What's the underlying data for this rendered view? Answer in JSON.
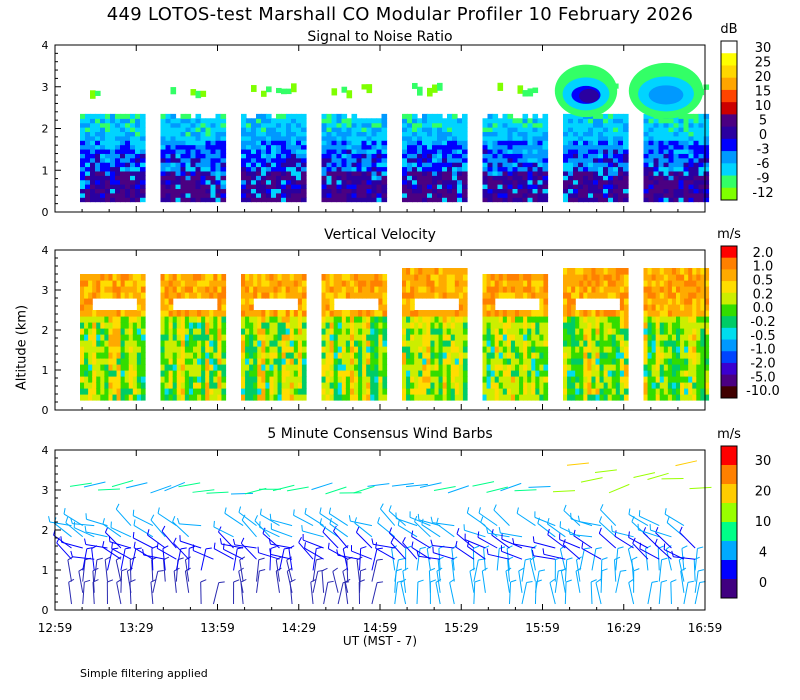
{
  "title": "449 LOTOS-test Marshall CO Modular Profiler 10 February 2026",
  "footnote": "Simple filtering applied",
  "colors": {
    "snr_scale": [
      "#7fff00",
      "#33ff66",
      "#00d4ff",
      "#0099ff",
      "#0000ff",
      "#2a00a0",
      "#4b0082",
      "#cc0000",
      "#ff4400",
      "#ffa500",
      "#ffd700",
      "#ffff00",
      "#ffffff"
    ],
    "vv_scale": [
      "#400000",
      "#4b0082",
      "#3b00d0",
      "#0044ff",
      "#0099ff",
      "#00ddee",
      "#00cc66",
      "#33dd00",
      "#ccee00",
      "#ffdd00",
      "#ffaa00",
      "#ff8000",
      "#ff0000"
    ],
    "wind_scale": [
      "#400080",
      "#0000ff",
      "#00aaff",
      "#00ff88",
      "#99ff00",
      "#ffcc00",
      "#ff8000",
      "#ff0000"
    ]
  },
  "chart_data": [
    {
      "type": "heatmap",
      "title": "Signal to Noise Ratio",
      "ylabel": "Altitude (km)",
      "yticks": [
        "0",
        "1",
        "2",
        "3",
        "4"
      ],
      "ylim": [
        0,
        4
      ],
      "colorbar": {
        "units": "dB",
        "labels": [
          "30",
          "25",
          "20",
          "15",
          "10",
          "5",
          "0",
          "-3",
          "-6",
          "-9",
          "-12"
        ]
      },
      "segments_start_time": [
        "13:00",
        "13:30",
        "14:00",
        "14:30",
        "15:00",
        "15:30",
        "16:00",
        "16:30"
      ]
    },
    {
      "type": "heatmap",
      "title": "Vertical Velocity",
      "ylabel": "Altitude (km)",
      "yticks": [
        "0",
        "1",
        "2",
        "3",
        "4"
      ],
      "ylim": [
        0,
        4
      ],
      "colorbar": {
        "units": "m/s",
        "labels": [
          "2.0",
          "1.0",
          "0.5",
          "0.2",
          "0.0",
          "-0.2",
          "-0.5",
          "-1.0",
          "-2.0",
          "-5.0",
          "-10.0"
        ]
      }
    },
    {
      "type": "scatter",
      "title": "5 Minute Consensus Wind Barbs",
      "ylabel": "Altitude (km)",
      "yticks": [
        "0",
        "1",
        "2",
        "3",
        "4"
      ],
      "ylim": [
        0,
        4
      ],
      "xlabel": "UT  (MST - 7)",
      "xticks": [
        "12:59",
        "13:29",
        "13:59",
        "14:29",
        "14:59",
        "15:29",
        "15:59",
        "16:29",
        "16:59"
      ],
      "colorbar": {
        "units": "m/s",
        "labels": [
          "30",
          "20",
          "10",
          "4",
          "0"
        ]
      }
    }
  ]
}
